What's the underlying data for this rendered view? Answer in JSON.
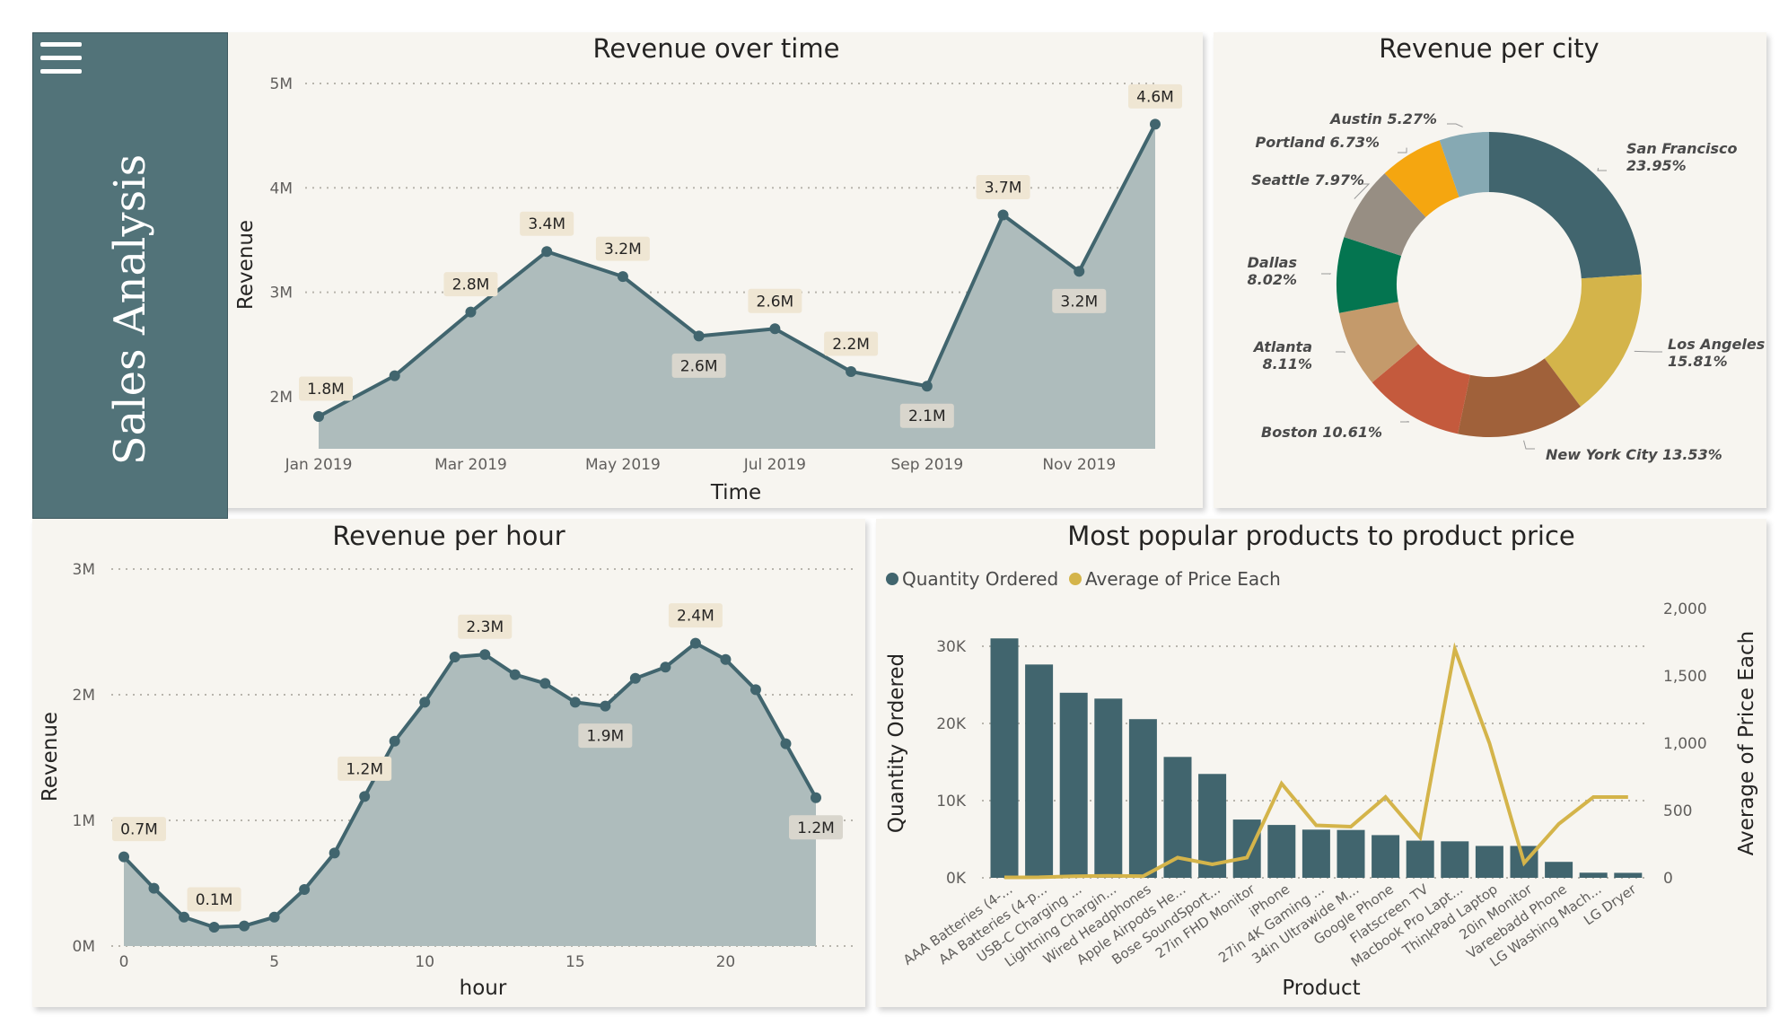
{
  "sidebar": {
    "title": "Sales Analysis",
    "menu_icon": "hamburger-menu-icon"
  },
  "colors": {
    "teal": "#41656e",
    "area": "#aebcbc",
    "gold": "#d4b44a",
    "label_bg": "#efe6d3",
    "label_bg_dark": "#d9d6cd",
    "panel_bg": "#f7f5f0",
    "sidebar_bg": "#527379"
  },
  "chart_data": [
    {
      "id": "revenue_over_time",
      "type": "area",
      "title": "Revenue over time",
      "xlabel": "Time",
      "ylabel": "Revenue",
      "x_tick_labels": [
        "Jan 2019",
        "Mar 2019",
        "May 2019",
        "Jul 2019",
        "Sep 2019",
        "Nov 2019"
      ],
      "y_tick_labels": [
        "5M",
        "4M",
        "3M",
        "2M"
      ],
      "ylim": [
        1.5,
        5.0
      ],
      "y_unit": "M",
      "months": [
        "2019-01",
        "2019-02",
        "2019-03",
        "2019-04",
        "2019-05",
        "2019-06",
        "2019-07",
        "2019-08",
        "2019-09",
        "2019-10",
        "2019-11",
        "2019-12"
      ],
      "values": [
        1.81,
        2.2,
        2.81,
        3.39,
        3.15,
        2.58,
        2.65,
        2.24,
        2.1,
        3.74,
        3.2,
        4.61
      ],
      "data_labels": [
        "1.8M",
        "",
        "2.8M",
        "3.4M",
        "3.2M",
        "2.6M",
        "2.6M",
        "2.2M",
        "2.1M",
        "3.7M",
        "3.2M",
        "4.6M"
      ],
      "grid": true
    },
    {
      "id": "revenue_per_city",
      "type": "pie",
      "title": "Revenue per city",
      "slices": [
        {
          "label": "San Francisco",
          "value": 23.95,
          "text": "23.95%",
          "color": "#41656e"
        },
        {
          "label": "Los Angeles",
          "value": 15.81,
          "text": "15.81%",
          "color": "#d4b44a"
        },
        {
          "label": "New York City",
          "value": 13.53,
          "text": "13.53%",
          "color": "#a0613a"
        },
        {
          "label": "Boston",
          "value": 10.61,
          "text": "10.61%",
          "color": "#c45a3d"
        },
        {
          "label": "Atlanta",
          "value": 8.11,
          "text": "8.11%",
          "color": "#c49a6b"
        },
        {
          "label": "Dallas",
          "value": 8.02,
          "text": "8.02%",
          "color": "#047550"
        },
        {
          "label": "Seattle",
          "value": 7.97,
          "text": "7.97%",
          "color": "#978e83"
        },
        {
          "label": "Portland",
          "value": 6.73,
          "text": "6.73%",
          "color": "#f5a610"
        },
        {
          "label": "Austin",
          "value": 5.27,
          "text": "5.27%",
          "color": "#86a9b3"
        }
      ]
    },
    {
      "id": "revenue_per_hour",
      "type": "area",
      "title": "Revenue per hour",
      "xlabel": "hour",
      "ylabel": "Revenue",
      "x_ticks": [
        0,
        5,
        10,
        15,
        20
      ],
      "y_tick_labels": [
        "3M",
        "2M",
        "1M",
        "0M"
      ],
      "ylim": [
        0,
        3.0
      ],
      "y_unit": "M",
      "x": [
        0,
        1,
        2,
        3,
        4,
        5,
        6,
        7,
        8,
        9,
        10,
        11,
        12,
        13,
        14,
        15,
        16,
        17,
        18,
        19,
        20,
        21,
        22,
        23
      ],
      "values": [
        0.71,
        0.46,
        0.23,
        0.15,
        0.16,
        0.23,
        0.45,
        0.74,
        1.19,
        1.63,
        1.94,
        2.3,
        2.32,
        2.16,
        2.09,
        1.94,
        1.91,
        2.13,
        2.22,
        2.41,
        2.28,
        2.04,
        1.61,
        1.18
      ],
      "data_labels": [
        "0.7M",
        "",
        "",
        "0.1M",
        "",
        "",
        "",
        "",
        "1.2M",
        "",
        "",
        "",
        "2.3M",
        "",
        "",
        "",
        "1.9M",
        "",
        "",
        "2.4M",
        "",
        "",
        "",
        "1.2M"
      ],
      "grid": true
    },
    {
      "id": "popular_products",
      "type": "bar",
      "title": "Most popular products to product price",
      "xlabel": "Product",
      "ylabel": "Quantity Ordered",
      "y2label": "Average of Price Each",
      "legend_position": "top-left",
      "y_tick_labels": [
        "30K",
        "20K",
        "10K",
        "0K"
      ],
      "y2_tick_labels": [
        "2,000",
        "1,500",
        "1,000",
        "500",
        "0"
      ],
      "ylim": [
        0,
        35000
      ],
      "y2lim": [
        0,
        2000
      ],
      "categories": [
        "AAA Batteries (4-...",
        "AA Batteries (4-p...",
        "USB-C Charging ...",
        "Lightning Chargin...",
        "Wired Headphones",
        "Apple Airpods He...",
        "Bose SoundSport...",
        "27in FHD Monitor",
        "iPhone",
        "27in 4K Gaming ...",
        "34in Ultrawide M...",
        "Google Phone",
        "Flatscreen TV",
        "Macbook Pro Lapt...",
        "ThinkPad Laptop",
        "20in Monitor",
        "Vareebadd Phone",
        "LG Washing Mach...",
        "LG Dryer"
      ],
      "series": [
        {
          "name": "Quantity Ordered",
          "type": "bar",
          "color": "#41656e",
          "values": [
            31017,
            27635,
            23975,
            23217,
            20557,
            15661,
            13457,
            7550,
            6849,
            6244,
            6199,
            5532,
            4819,
            4728,
            4130,
            4129,
            2068,
            666,
            646
          ]
        },
        {
          "name": "Average of Price Each",
          "type": "line",
          "color": "#d4b44a",
          "values": [
            2.99,
            3.84,
            11.95,
            14.95,
            11.99,
            150,
            99.99,
            149.99,
            700,
            389.99,
            379.99,
            600,
            300,
            1700,
            999.99,
            109.99,
            400,
            600,
            600
          ]
        }
      ],
      "grid": true
    }
  ]
}
